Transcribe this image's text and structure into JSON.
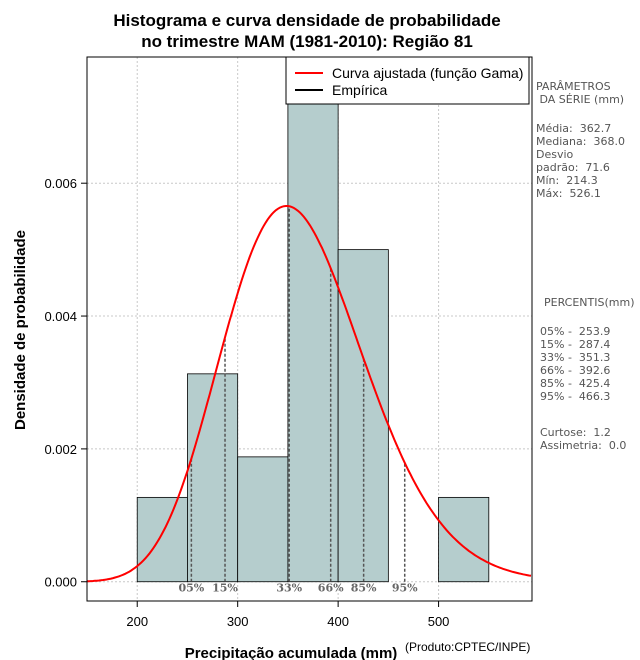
{
  "chart_data": {
    "type": "bar",
    "title": [
      "Histograma e curva densidade de probabilidade",
      "no trimestre MAM (1981-2010): Região 81"
    ],
    "xlabel": "Precipitação acumulada (mm)",
    "ylabel": "Densidade de probabilidade",
    "credit": "(Produto:CPTEC/INPE)",
    "xlim": [
      150,
      593
    ],
    "ylim": [
      -0.00029,
      0.0079
    ],
    "x_ticks": [
      200,
      300,
      400,
      500
    ],
    "y_ticks": [
      0.0,
      0.002,
      0.004,
      0.006
    ],
    "y_tick_labels": [
      "0.000",
      "0.002",
      "0.004",
      "0.006"
    ],
    "grid": true,
    "bins": [
      {
        "from": 200,
        "to": 250,
        "density": 0.00127
      },
      {
        "from": 250,
        "to": 300,
        "density": 0.00313
      },
      {
        "from": 300,
        "to": 350,
        "density": 0.00188
      },
      {
        "from": 350,
        "to": 400,
        "density": 0.00776
      },
      {
        "from": 400,
        "to": 450,
        "density": 0.005
      },
      {
        "from": 450,
        "to": 500,
        "density": 0.0
      },
      {
        "from": 500,
        "to": 550,
        "density": 0.00127
      }
    ],
    "fitted_curve": {
      "name": "Curva ajustada (função Gama)",
      "color": "#ff0000",
      "shape": 25.6,
      "scale": 14.17
    },
    "legend": [
      {
        "label": "Curva ajustada (função Gama)",
        "color": "#ff0000"
      },
      {
        "label": "Empírica",
        "color": "#000000"
      }
    ],
    "legend_position": "top-right",
    "percentiles": [
      {
        "label": "05%",
        "value": 253.9
      },
      {
        "label": "15%",
        "value": 287.4
      },
      {
        "label": "33%",
        "value": 351.3
      },
      {
        "label": "66%",
        "value": 392.6
      },
      {
        "label": "85%",
        "value": 425.4
      },
      {
        "label": "95%",
        "value": 466.3
      }
    ],
    "colors": {
      "bar_fill": "#b5cdcd",
      "curve": "#ff0000",
      "percentile_line": "#555555"
    }
  },
  "side_panel": {
    "params_heading": "PARÂMETROS\n DA SÉRIE (mm)",
    "stats": "Média:  362.7\nMediana:  368.0\nDesvio\npadrão:  71.6\nMín:  214.3\nMáx:  526.1",
    "percentis_heading": "PERCENTIS(mm)",
    "percentis": "05% -  253.9\n15% -  287.4\n33% -  351.3\n66% -  392.6\n85% -  425.4\n95% -  466.3",
    "shape_stats": "Curtose:  1.2\nAssimetria:  0.0"
  }
}
